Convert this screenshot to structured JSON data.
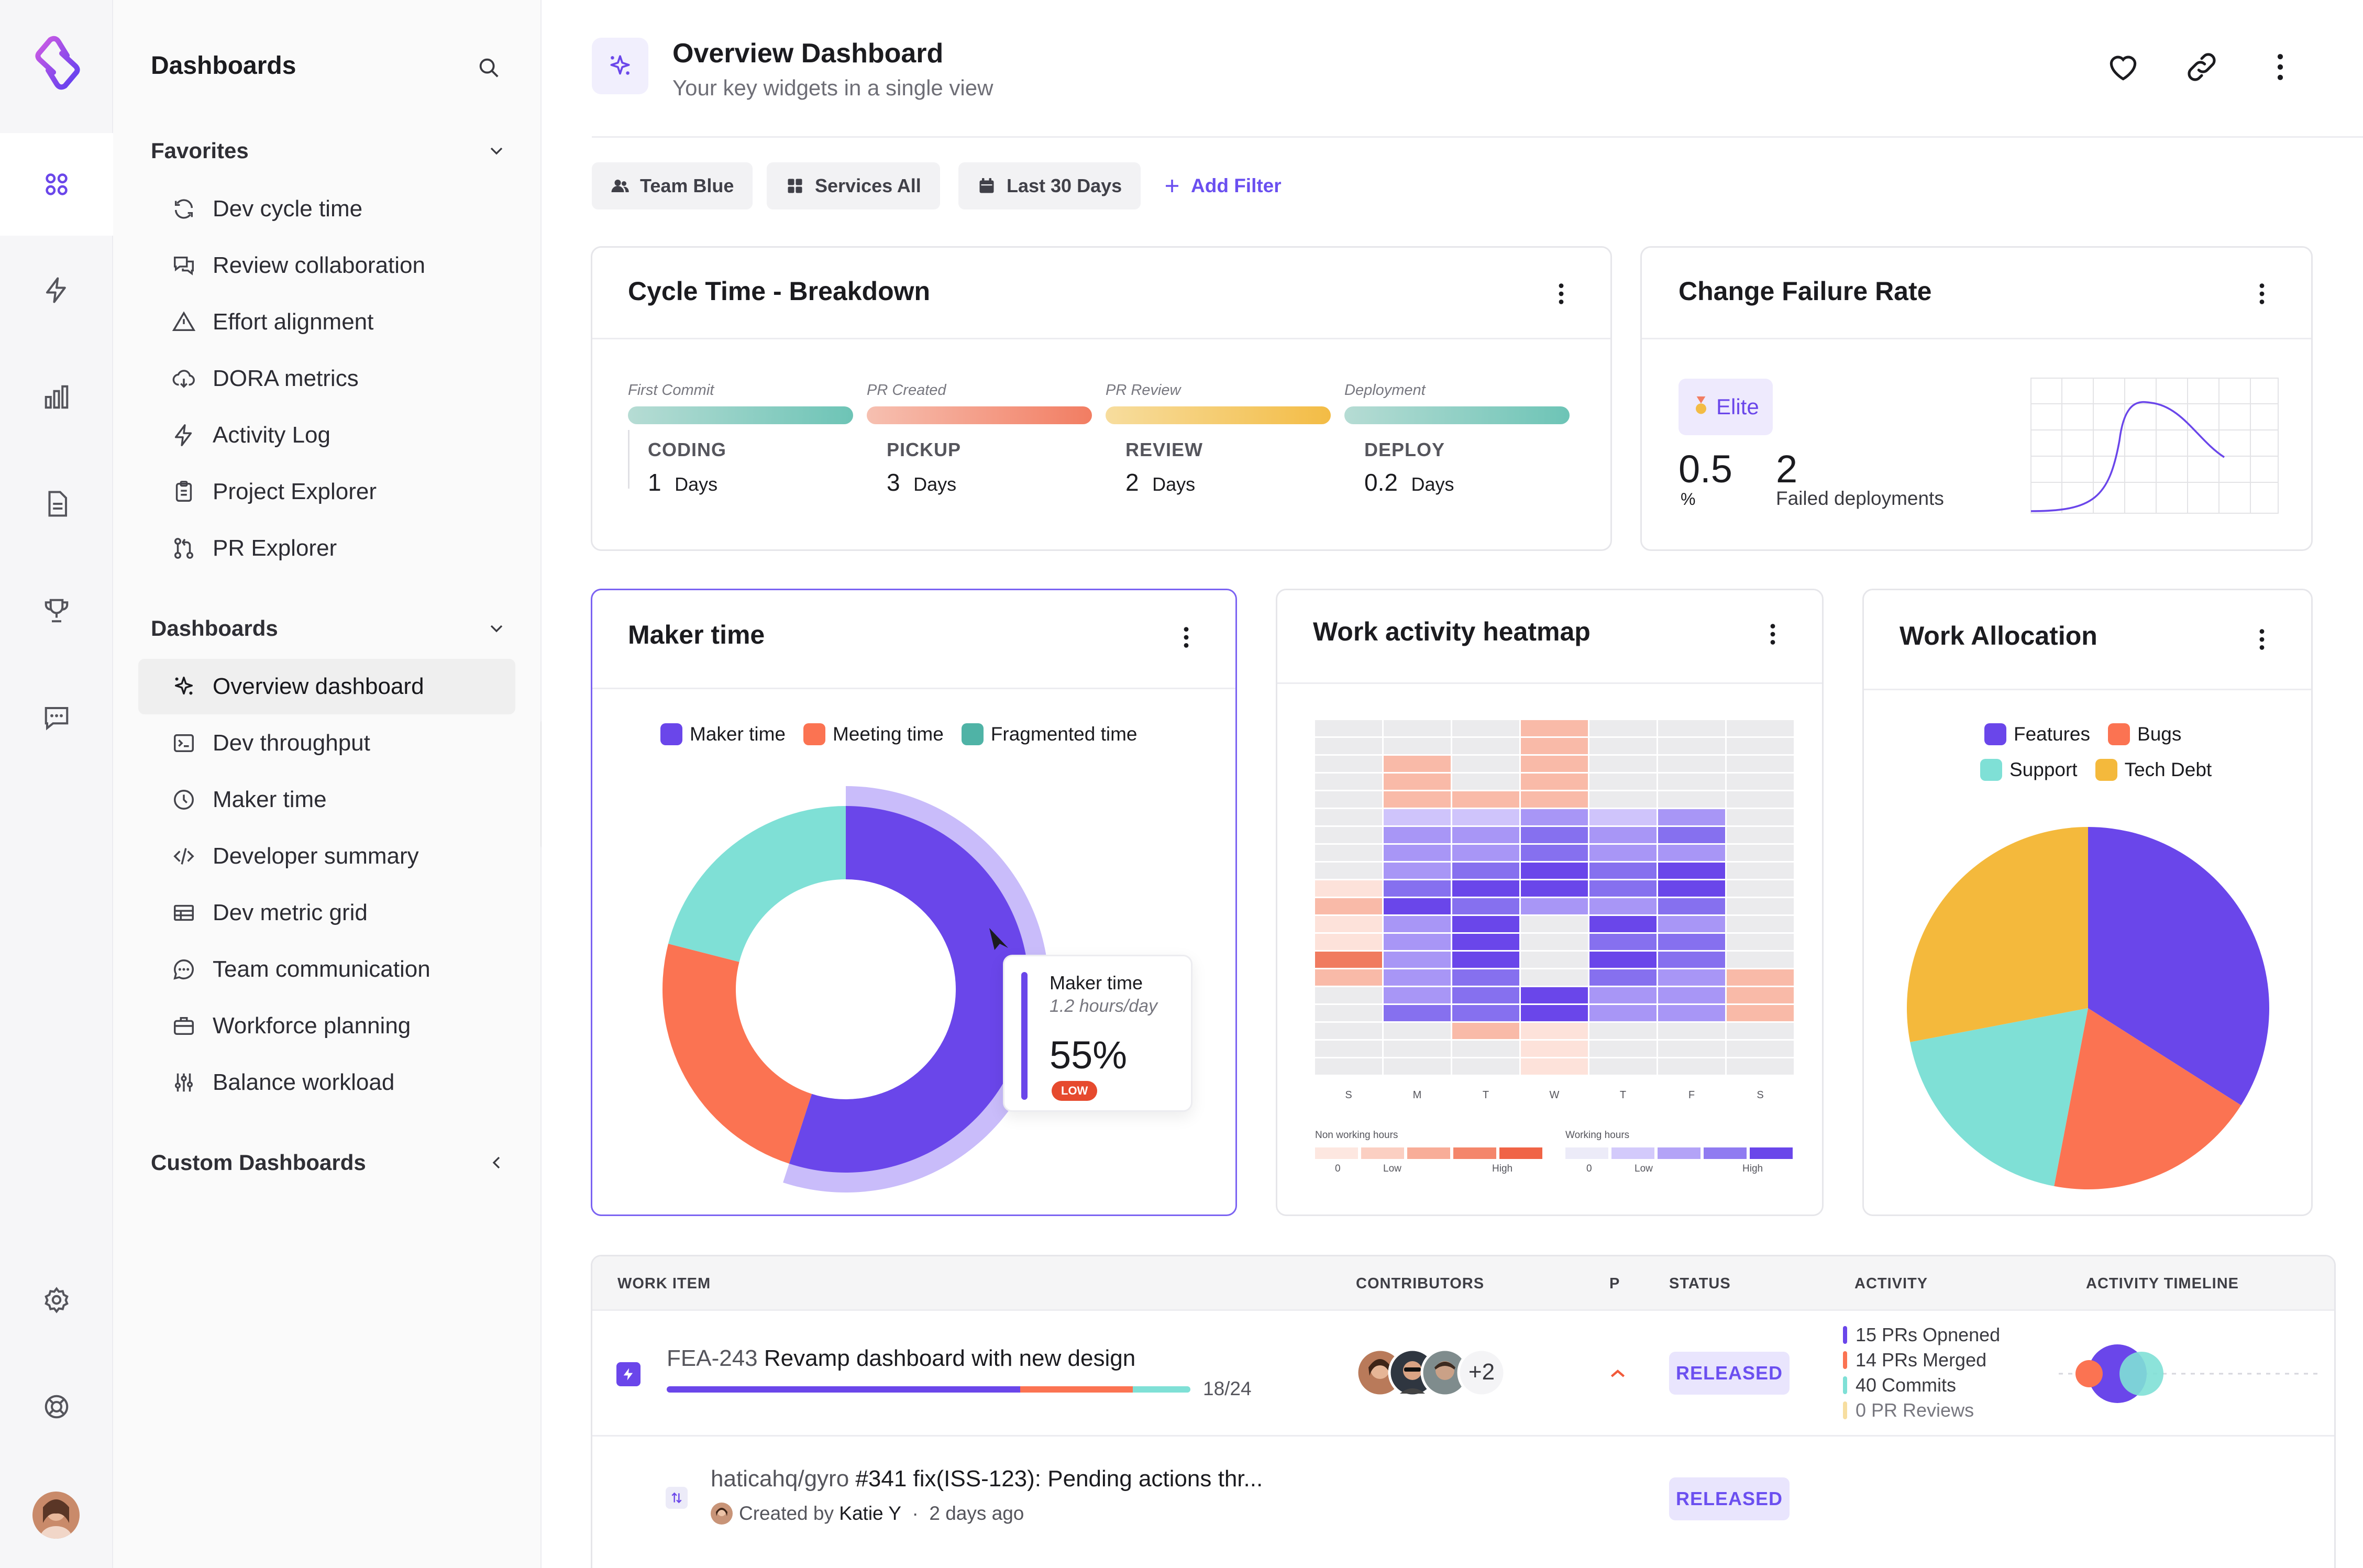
{
  "nav": {
    "rail_icons": [
      "dashboard-grid-icon",
      "bolt-icon",
      "bar-chart-icon",
      "document-icon",
      "trophy-icon",
      "chat-icon",
      "settings-gear-icon",
      "lifebuoy-icon"
    ]
  },
  "sidebar": {
    "title": "Dashboards",
    "favorites_label": "Favorites",
    "favorites": [
      {
        "label": "Dev cycle time",
        "icon": "refresh-icon"
      },
      {
        "label": "Review collaboration",
        "icon": "comments-icon"
      },
      {
        "label": "Effort alignment",
        "icon": "warning-triangle-icon"
      },
      {
        "label": "DORA metrics",
        "icon": "cloud-icon"
      },
      {
        "label": "Activity Log",
        "icon": "bolt-icon"
      },
      {
        "label": "Project Explorer",
        "icon": "clipboard-icon"
      },
      {
        "label": "PR Explorer",
        "icon": "pull-request-icon"
      }
    ],
    "dashboards_label": "Dashboards",
    "dashboards": [
      {
        "label": "Overview dashboard",
        "icon": "sparkle-icon"
      },
      {
        "label": "Dev throughput",
        "icon": "terminal-icon"
      },
      {
        "label": "Maker time",
        "icon": "clock-icon"
      },
      {
        "label": "Developer summary",
        "icon": "code-icon"
      },
      {
        "label": "Dev metric grid",
        "icon": "table-icon"
      },
      {
        "label": "Team communication",
        "icon": "message-icon"
      },
      {
        "label": "Workforce planning",
        "icon": "briefcase-icon"
      },
      {
        "label": "Balance workload",
        "icon": "sliders-icon"
      }
    ],
    "custom_label": "Custom Dashboards"
  },
  "header": {
    "title": "Overview Dashboard",
    "subtitle": "Your key widgets in a single view"
  },
  "filters": {
    "team": "Team Blue",
    "services": "Services All",
    "range": "Last 30 Days",
    "add": "Add Filter"
  },
  "cycle_time": {
    "title": "Cycle Time -  Breakdown",
    "stages": [
      {
        "label": "First Commit",
        "name": "CODING",
        "value": "1",
        "unit": "Days",
        "color_from": "#b6dcd4",
        "color_to": "#6dc4b6"
      },
      {
        "label": "PR Created",
        "name": "PICKUP",
        "value": "3",
        "unit": "Days",
        "color_from": "#f6c0b1",
        "color_to": "#f27d62"
      },
      {
        "label": "PR Review",
        "name": "REVIEW",
        "value": "2",
        "unit": "Days",
        "color_from": "#f7dd9e",
        "color_to": "#f3bc45"
      },
      {
        "label": "Deployment",
        "name": "DEPLOY",
        "value": "0.2",
        "unit": "Days",
        "color_from": "#b6dcd4",
        "color_to": "#6dc4b6"
      }
    ]
  },
  "change_failure": {
    "title": "Change Failure Rate",
    "badge": "Elite",
    "rate": "0.5",
    "rate_unit": "%",
    "failed": "2",
    "failed_label": "Failed deployments"
  },
  "maker_time": {
    "title": "Maker time",
    "legend": [
      {
        "label": "Maker time",
        "color": "#6a46ea"
      },
      {
        "label": "Meeting time",
        "color": "#fb7352"
      },
      {
        "label": "Fragmented time",
        "color": "#4fb3a6"
      }
    ],
    "tooltip": {
      "title": "Maker time",
      "sub": "1.2 hours/day",
      "value": "55%",
      "badge": "LOW"
    }
  },
  "chart_data": [
    {
      "type": "pie",
      "title": "Maker time",
      "labels": [
        "Maker time",
        "Meeting time",
        "Fragmented time"
      ],
      "values": [
        55,
        24,
        21
      ],
      "colors": [
        "#6a46ea",
        "#fb7352",
        "#7fe0d6"
      ]
    },
    {
      "type": "pie",
      "title": "Work Allocation",
      "labels": [
        "Features",
        "Bugs",
        "Support",
        "Tech Debt"
      ],
      "values": [
        34,
        19,
        19,
        28
      ],
      "colors": [
        "#6a46ea",
        "#fb7352",
        "#7fe0d6",
        "#f4b93c"
      ]
    },
    {
      "type": "heatmap",
      "title": "Work activity heatmap",
      "columns": [
        "S",
        "M",
        "T",
        "W",
        "T",
        "F",
        "S"
      ],
      "rows": 20,
      "values": [
        [
          0,
          0,
          0,
          -2,
          0,
          0,
          0
        ],
        [
          0,
          0,
          0,
          -2,
          0,
          0,
          0
        ],
        [
          0,
          -2,
          0,
          -2,
          0,
          0,
          0
        ],
        [
          0,
          -2,
          0,
          -2,
          0,
          0,
          0
        ],
        [
          0,
          -2,
          -2,
          -2,
          0,
          0,
          0
        ],
        [
          0,
          1,
          1,
          2,
          1,
          2,
          0
        ],
        [
          0,
          2,
          2,
          3,
          2,
          3,
          0
        ],
        [
          0,
          2,
          2,
          3,
          2,
          2,
          0
        ],
        [
          0,
          2,
          3,
          4,
          3,
          4,
          0
        ],
        [
          -1,
          3,
          4,
          4,
          3,
          4,
          0
        ],
        [
          -2,
          4,
          3,
          2,
          2,
          3,
          0
        ],
        [
          -1,
          2,
          4,
          0,
          4,
          2,
          0
        ],
        [
          -1,
          2,
          4,
          0,
          3,
          3,
          0
        ],
        [
          -3,
          2,
          4,
          0,
          4,
          3,
          0
        ],
        [
          -2,
          2,
          3,
          0,
          3,
          2,
          -2
        ],
        [
          0,
          2,
          3,
          4,
          2,
          2,
          -2
        ],
        [
          0,
          3,
          3,
          4,
          2,
          2,
          -2
        ],
        [
          0,
          0,
          -2,
          -1,
          0,
          0,
          0
        ],
        [
          0,
          0,
          0,
          -1,
          0,
          0,
          0
        ],
        [
          0,
          0,
          0,
          -1,
          0,
          0,
          0
        ]
      ],
      "legend": {
        "non_working": "Non working hours",
        "working": "Working hours",
        "min": "0",
        "low": "Low",
        "high": "High"
      }
    }
  ],
  "work_heatmap": {
    "title": "Work activity heatmap"
  },
  "work_allocation": {
    "title": "Work Allocation",
    "legend": [
      {
        "label": "Features",
        "color": "#6a46ea"
      },
      {
        "label": "Bugs",
        "color": "#fb7352"
      },
      {
        "label": "Support",
        "color": "#7fe0d6"
      },
      {
        "label": "Tech Debt",
        "color": "#f4b93c"
      }
    ]
  },
  "table": {
    "headers": [
      "WORK ITEM",
      "CONTRIBUTORS",
      "P",
      "STATUS",
      "ACTIVITY",
      "ACTIVITY TIMELINE"
    ],
    "row1": {
      "id": "FEA-243",
      "title": "Revamp dashboard with new design",
      "progress": "18/24",
      "extra": "+2",
      "status": "RELEASED",
      "activity": [
        {
          "text": "15 PRs Opnened",
          "color": "#6a46ea"
        },
        {
          "text": "14 PRs Merged",
          "color": "#fb7352"
        },
        {
          "text": "40 Commits",
          "color": "#7fe0d6"
        },
        {
          "text": "0 PR Reviews",
          "color": "#f7dea0"
        }
      ]
    },
    "row2": {
      "repo": "haticahq/gyro",
      "pr": "#341 fix(ISS-123): Pending actions thr...",
      "created_by": "Created by",
      "author": "Katie Y",
      "age": "2 days ago",
      "status": "RELEASED"
    }
  }
}
